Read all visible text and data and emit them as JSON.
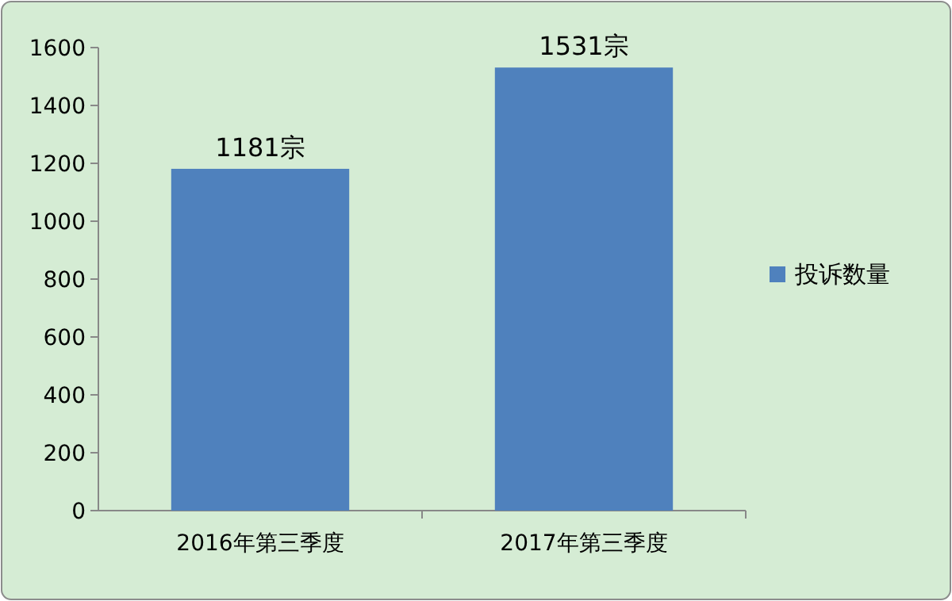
{
  "chart_data": {
    "type": "bar",
    "categories": [
      "2016年第三季度",
      "2017年第三季度"
    ],
    "series": [
      {
        "name": "投诉数量",
        "color": "#4f81bd",
        "values": [
          1181,
          1531
        ],
        "value_labels": [
          "1181宗",
          "1531宗"
        ]
      }
    ],
    "ylim": [
      0,
      1600
    ],
    "yticks": [
      0,
      200,
      400,
      600,
      800,
      1000,
      1200,
      1400,
      1600
    ],
    "grid": false,
    "legend": "right"
  }
}
